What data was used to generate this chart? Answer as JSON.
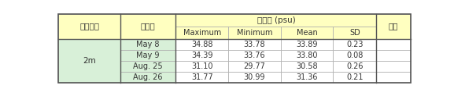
{
  "header_row1_labels": [
    "관측수층",
    "관측일",
    "측정값 (psu)",
    "비고"
  ],
  "header_row2_labels": [
    "Maximum",
    "Minimum",
    "Mean",
    "SD"
  ],
  "rows": [
    [
      "May 8",
      "34.88",
      "33.78",
      "33.89",
      "0.23"
    ],
    [
      "May 9",
      "34.39",
      "33.76",
      "33.80",
      "0.08"
    ],
    [
      "Aug. 25",
      "31.10",
      "29.77",
      "30.58",
      "0.26"
    ],
    [
      "Aug. 26",
      "31.77",
      "30.99",
      "31.36",
      "0.21"
    ]
  ],
  "depth_label": "2m",
  "header_bg": "#FFFFC0",
  "cell_bg": "#D8F0D8",
  "data_bg": "#FFFFFF",
  "border_color_outer": "#555555",
  "border_color_inner": "#AAAAAA",
  "text_color": "#333333",
  "fig_width": 5.77,
  "fig_height": 1.23,
  "dpi": 100
}
